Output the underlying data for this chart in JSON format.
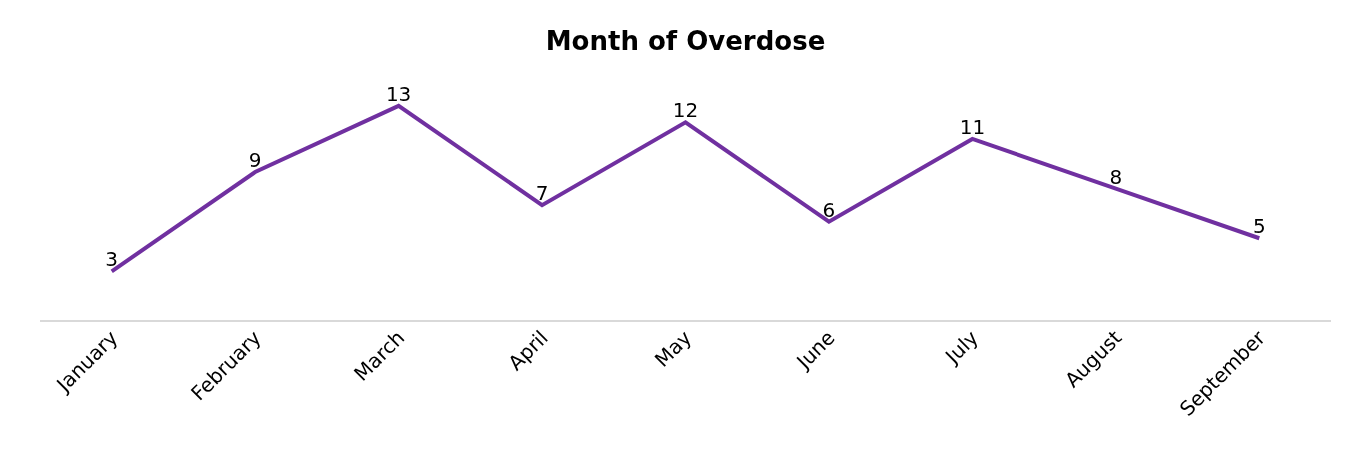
{
  "chart_data": {
    "type": "line",
    "title": "Month of Overdose",
    "categories": [
      "January",
      "February",
      "March",
      "April",
      "May",
      "June",
      "July",
      "August",
      "September"
    ],
    "series": [
      {
        "color": "#7030a0",
        "values": [
          3,
          9,
          13,
          7,
          12,
          6,
          11,
          8,
          5
        ]
      }
    ],
    "data_labels": true,
    "tick_labels": "x",
    "marker": "none",
    "line_style": "solid"
  }
}
